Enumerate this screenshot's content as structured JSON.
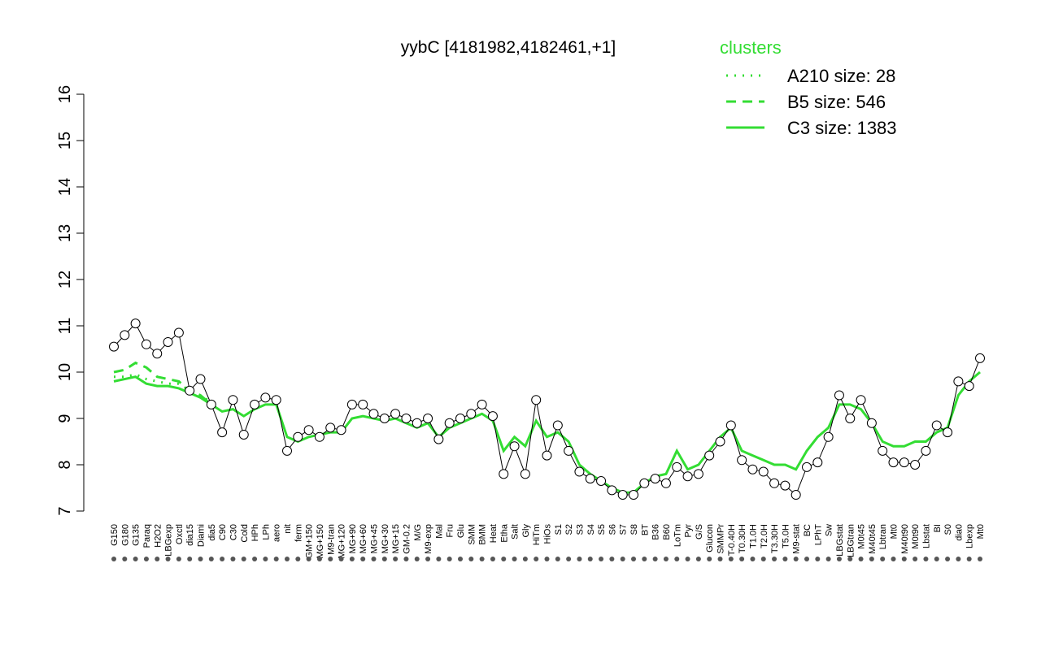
{
  "chart_data": {
    "type": "line",
    "title": "yybC [4181982,4182461,+1]",
    "legend_title": "clusters",
    "ylim": [
      7,
      16
    ],
    "yticks": [
      7,
      8,
      9,
      10,
      11,
      12,
      13,
      14,
      15,
      16
    ],
    "categories": [
      "G150",
      "G180",
      "G135",
      "Paraq",
      "H2O2",
      "LBGexp",
      "Oxctl",
      "dia15",
      "Diami",
      "dia5",
      "C90",
      "C30",
      "Cold",
      "HPh",
      "LPh",
      "aero",
      "nit",
      "ferm",
      "GM+150",
      "MG+150",
      "M9-tran",
      "MG+120",
      "MG+90",
      "MG+60",
      "MG+45",
      "MG+30",
      "MG+15",
      "GM-0.2",
      "M/G",
      "M9-exp",
      "Mal",
      "Fru",
      "Glu",
      "SMM",
      "BMM",
      "Heat",
      "Etha",
      "Salt",
      "Gly",
      "HiTm",
      "HiOs",
      "S1",
      "S2",
      "S3",
      "S4",
      "S5",
      "S6",
      "S7",
      "S8",
      "BT",
      "B36",
      "B60",
      "LoTm",
      "Pyr",
      "G/S",
      "Glucon",
      "SMMPr",
      "T-0.40H",
      "T0.30H",
      "T1.0H",
      "T2.0H",
      "T3.30H",
      "T5.0H",
      "M9-stat",
      "BC",
      "LPhT",
      "Sw",
      "LBGstat",
      "LBGtran",
      "M0t45",
      "M40t45",
      "Lbtran",
      "Mt0",
      "M40t90",
      "M0t90",
      "Lbstat",
      "BI",
      "S0",
      "dia0",
      "Lbexp",
      "Mt0"
    ],
    "values": [
      10.55,
      10.8,
      11.05,
      10.6,
      10.4,
      10.65,
      10.85,
      9.6,
      9.85,
      9.3,
      8.7,
      9.4,
      8.65,
      9.3,
      9.45,
      9.4,
      8.3,
      8.6,
      8.75,
      8.6,
      8.8,
      8.75,
      9.3,
      9.3,
      9.1,
      9.0,
      9.1,
      9.0,
      8.9,
      9.0,
      8.55,
      8.9,
      9.0,
      9.1,
      9.3,
      9.05,
      7.8,
      8.4,
      7.8,
      9.4,
      8.2,
      8.85,
      8.3,
      7.85,
      7.7,
      7.65,
      7.45,
      7.35,
      7.35,
      7.6,
      7.7,
      7.6,
      7.95,
      7.75,
      7.8,
      8.2,
      8.5,
      8.85,
      8.1,
      7.9,
      7.85,
      7.6,
      7.55,
      7.35,
      7.95,
      8.05,
      8.6,
      9.5,
      9.0,
      9.4,
      8.9,
      8.3,
      8.05,
      8.05,
      8.0,
      8.3,
      8.85,
      8.7,
      9.8,
      9.7,
      10.3
    ],
    "color": "#000000",
    "series": [
      {
        "name": "A210 size: 28",
        "color": "#33dd33",
        "style": "dotted",
        "values": [
          9.9,
          9.9,
          9.95,
          9.85,
          9.8,
          9.75,
          9.75,
          9.6,
          9.5,
          9.35,
          null,
          null,
          null,
          null,
          null,
          null,
          null,
          null,
          null,
          null,
          null,
          null,
          null,
          null,
          null,
          null,
          null,
          null,
          null,
          null,
          null,
          null,
          null,
          null,
          null,
          null,
          null,
          null,
          null,
          null,
          null,
          null,
          null,
          null,
          null,
          null,
          null,
          null,
          null,
          null,
          null,
          null,
          null,
          null,
          null,
          null,
          null,
          null,
          null,
          null,
          null,
          null,
          null,
          null,
          null,
          null,
          null,
          null,
          null,
          null,
          null,
          null,
          null,
          null,
          null,
          null,
          null,
          null,
          null,
          null,
          null
        ]
      },
      {
        "name": "B5 size: 546",
        "color": "#33dd33",
        "style": "dashed",
        "values": [
          10.0,
          10.05,
          10.2,
          10.1,
          9.9,
          9.85,
          9.8,
          9.6,
          9.5,
          9.3,
          null,
          null,
          null,
          null,
          null,
          null,
          null,
          null,
          null,
          null,
          null,
          null,
          null,
          null,
          null,
          null,
          null,
          null,
          null,
          null,
          null,
          null,
          null,
          null,
          null,
          null,
          null,
          null,
          null,
          null,
          null,
          null,
          null,
          null,
          null,
          null,
          null,
          null,
          null,
          null,
          null,
          null,
          null,
          null,
          null,
          null,
          null,
          null,
          null,
          null,
          null,
          null,
          null,
          null,
          null,
          null,
          null,
          null,
          null,
          null,
          null,
          null,
          null,
          null,
          null,
          null,
          null,
          null,
          null,
          null,
          null
        ]
      },
      {
        "name": "C3 size: 1383",
        "color": "#33dd33",
        "style": "solid",
        "values": [
          9.8,
          9.85,
          9.9,
          9.75,
          9.7,
          9.7,
          9.65,
          9.55,
          9.45,
          9.3,
          9.15,
          9.2,
          9.05,
          9.2,
          9.3,
          9.3,
          8.6,
          8.5,
          8.6,
          8.65,
          8.7,
          8.7,
          9.0,
          9.05,
          9.0,
          8.95,
          9.0,
          8.9,
          8.8,
          8.9,
          8.6,
          8.8,
          8.9,
          9.0,
          9.1,
          8.95,
          8.3,
          8.6,
          8.4,
          8.95,
          8.6,
          8.7,
          8.5,
          8.0,
          7.8,
          7.65,
          7.5,
          7.4,
          7.4,
          7.6,
          7.75,
          7.8,
          8.3,
          7.9,
          8.0,
          8.3,
          8.6,
          8.8,
          8.3,
          8.2,
          8.1,
          8.0,
          8.0,
          7.9,
          8.3,
          8.6,
          8.8,
          9.3,
          9.3,
          9.2,
          8.9,
          8.5,
          8.4,
          8.4,
          8.5,
          8.5,
          8.7,
          8.8,
          9.5,
          9.8,
          10.0
        ]
      }
    ]
  }
}
